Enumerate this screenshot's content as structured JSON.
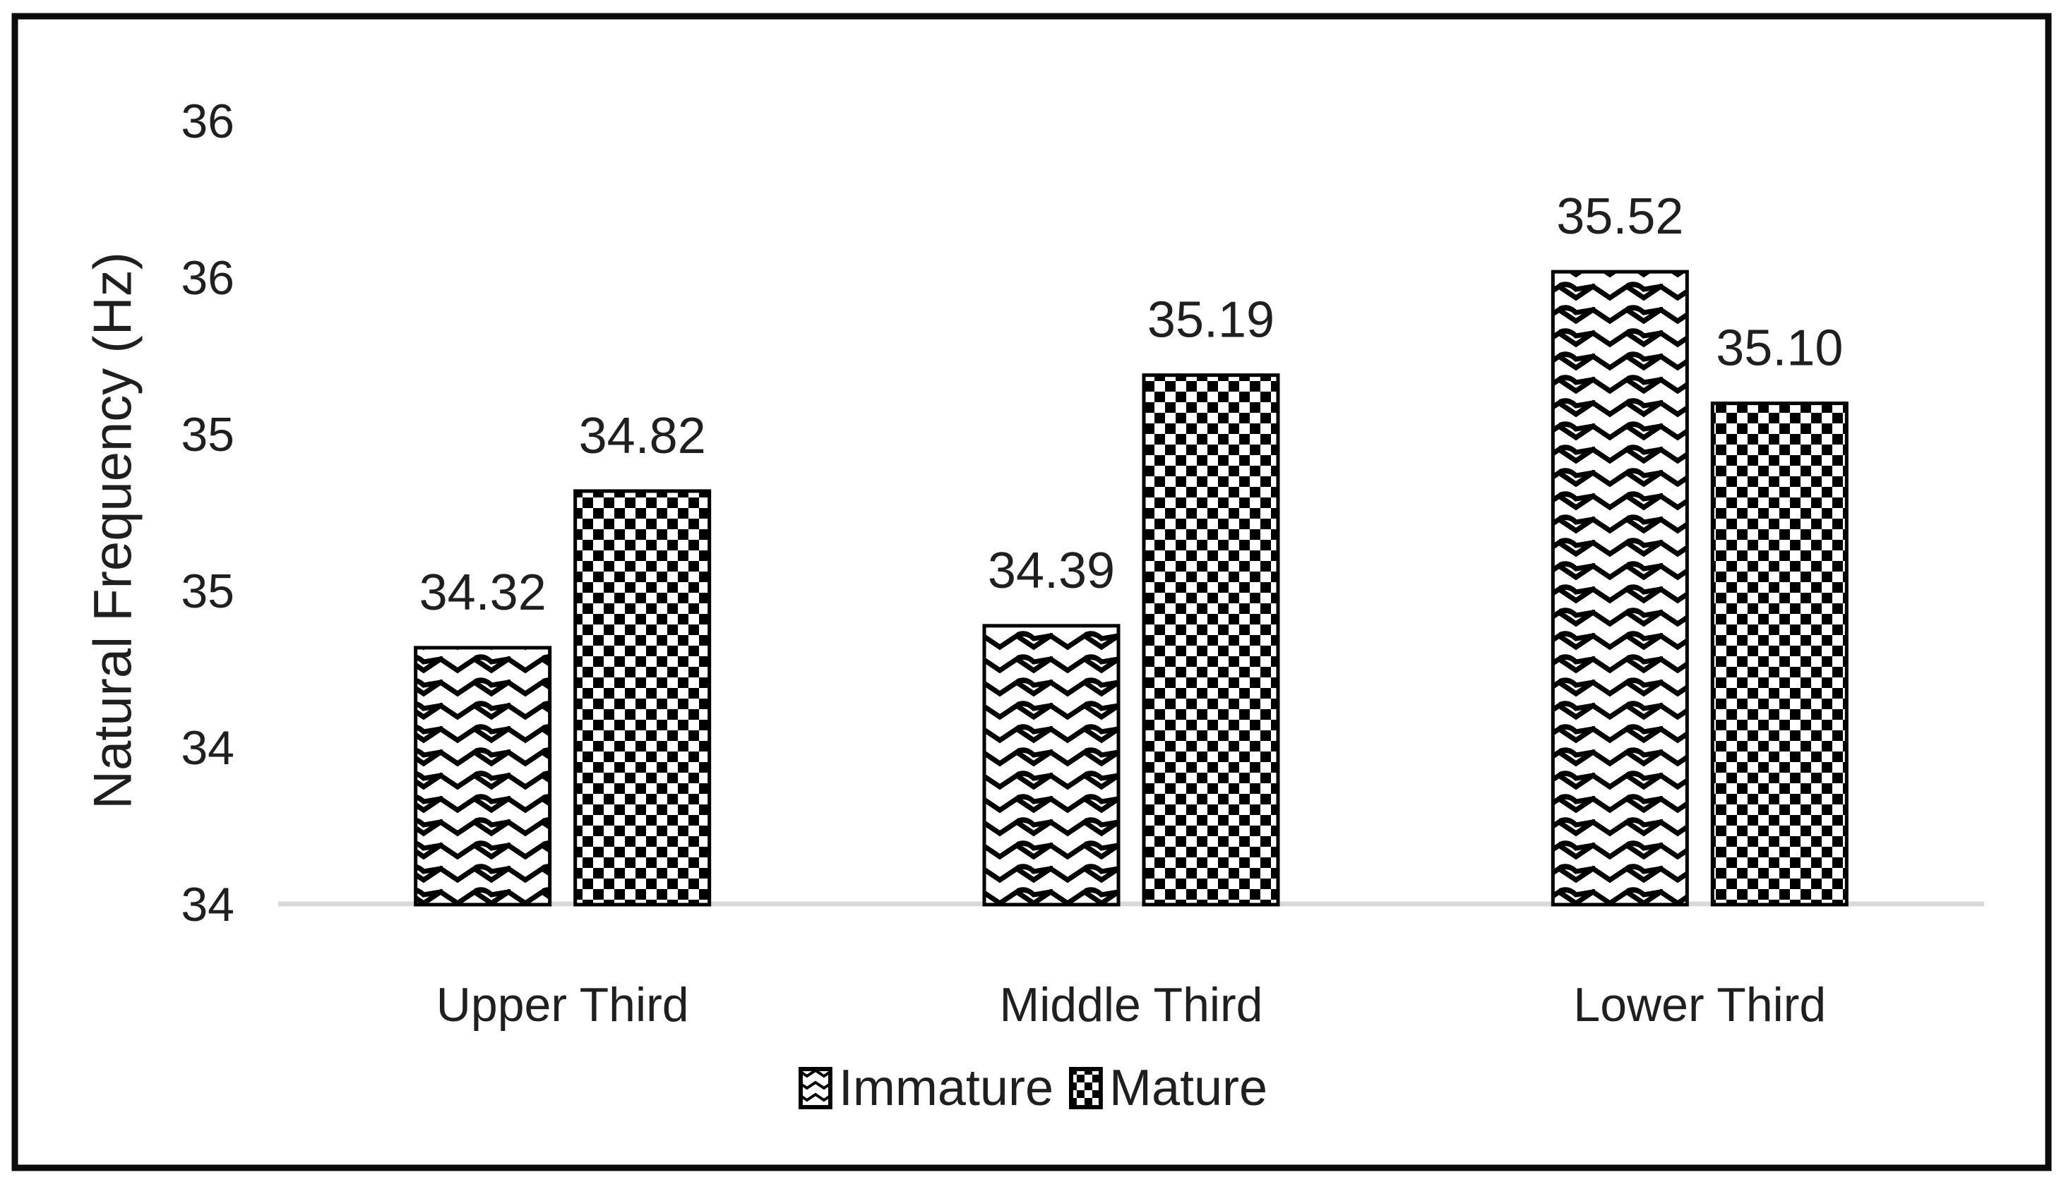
{
  "chart_data": {
    "type": "bar",
    "title": "",
    "ylabel": "Natural Frequency (Hz)",
    "xlabel": "",
    "categories": [
      "Upper Third",
      "Middle Third",
      "Lower Third"
    ],
    "series": [
      {
        "name": "Immature",
        "pattern": "wavy",
        "values": [
          34.32,
          34.39,
          35.52
        ]
      },
      {
        "name": "Mature",
        "pattern": "checker",
        "values": [
          34.82,
          35.19,
          35.1
        ]
      }
    ],
    "value_label_decimals": 2,
    "ylim": [
      33.5,
      36.0
    ],
    "ytick_interval": 0.5,
    "yticks": [
      {
        "value": 33.5,
        "label": "34"
      },
      {
        "value": 34.0,
        "label": "34"
      },
      {
        "value": 34.5,
        "label": "35"
      },
      {
        "value": 35.0,
        "label": "35"
      },
      {
        "value": 35.5,
        "label": "36"
      },
      {
        "value": 36.0,
        "label": "36"
      }
    ],
    "grid": false,
    "legend_position": "bottom",
    "bar_fill_style": "black-and-white patterns on white",
    "colors": {
      "pattern_ink": "#000000",
      "bar_background": "#ffffff",
      "bar_stroke": "#000000",
      "axis_line": "#d9d9d9",
      "text": "#1f1f1f",
      "frame_border": "#0b0b0b",
      "page_background": "#ffffff"
    }
  }
}
